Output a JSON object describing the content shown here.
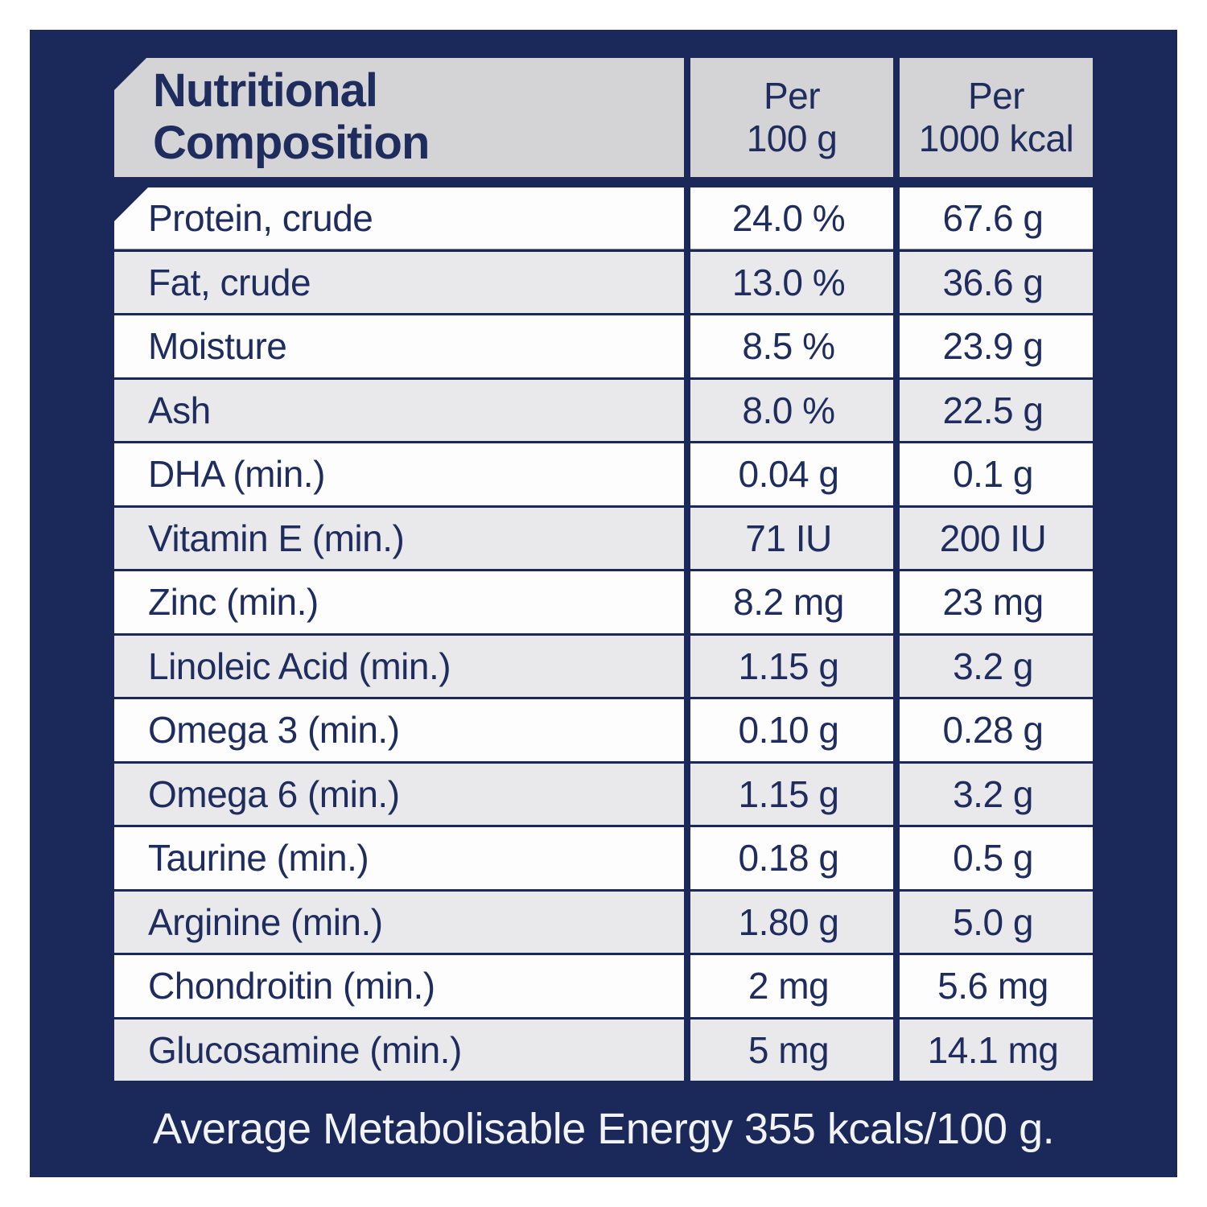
{
  "colors": {
    "navy": "#1A285A",
    "text_navy": "#1E2C5E",
    "header_gray": "#D4D4D6",
    "row_white": "#FDFDFE",
    "row_gray": "#E9E9EC",
    "footer_text": "#F2F3F5"
  },
  "table": {
    "header": {
      "title_line1": "Nutritional",
      "title_line2": "Composition",
      "columns": [
        {
          "line1": "Per",
          "line2": "100 g"
        },
        {
          "line1": "Per",
          "line2": "1000 kcal"
        }
      ]
    },
    "rows": [
      {
        "label": "Protein, crude",
        "per_100g": "24.0 %",
        "per_1000kcal": "67.6 g"
      },
      {
        "label": "Fat, crude",
        "per_100g": "13.0 %",
        "per_1000kcal": "36.6 g"
      },
      {
        "label": "Moisture",
        "per_100g": "8.5 %",
        "per_1000kcal": "23.9 g"
      },
      {
        "label": "Ash",
        "per_100g": "8.0 %",
        "per_1000kcal": "22.5 g"
      },
      {
        "label": "DHA (min.)",
        "per_100g": "0.04 g",
        "per_1000kcal": "0.1 g"
      },
      {
        "label": "Vitamin E (min.)",
        "per_100g": "71 IU",
        "per_1000kcal": "200 IU"
      },
      {
        "label": "Zinc (min.)",
        "per_100g": "8.2 mg",
        "per_1000kcal": "23 mg"
      },
      {
        "label": "Linoleic Acid (min.)",
        "per_100g": "1.15 g",
        "per_1000kcal": "3.2 g"
      },
      {
        "label": "Omega 3 (min.)",
        "per_100g": "0.10 g",
        "per_1000kcal": "0.28 g"
      },
      {
        "label": "Omega 6 (min.)",
        "per_100g": "1.15 g",
        "per_1000kcal": "3.2 g"
      },
      {
        "label": "Taurine (min.)",
        "per_100g": "0.18 g",
        "per_1000kcal": "0.5 g"
      },
      {
        "label": "Arginine (min.)",
        "per_100g": "1.80 g",
        "per_1000kcal": "5.0 g"
      },
      {
        "label": "Chondroitin (min.)",
        "per_100g": "2 mg",
        "per_1000kcal": "5.6 mg"
      },
      {
        "label": "Glucosamine (min.)",
        "per_100g": "5 mg",
        "per_1000kcal": "14.1 mg"
      }
    ],
    "footer": "Average Metabolisable Energy 355 kcals/100 g."
  }
}
